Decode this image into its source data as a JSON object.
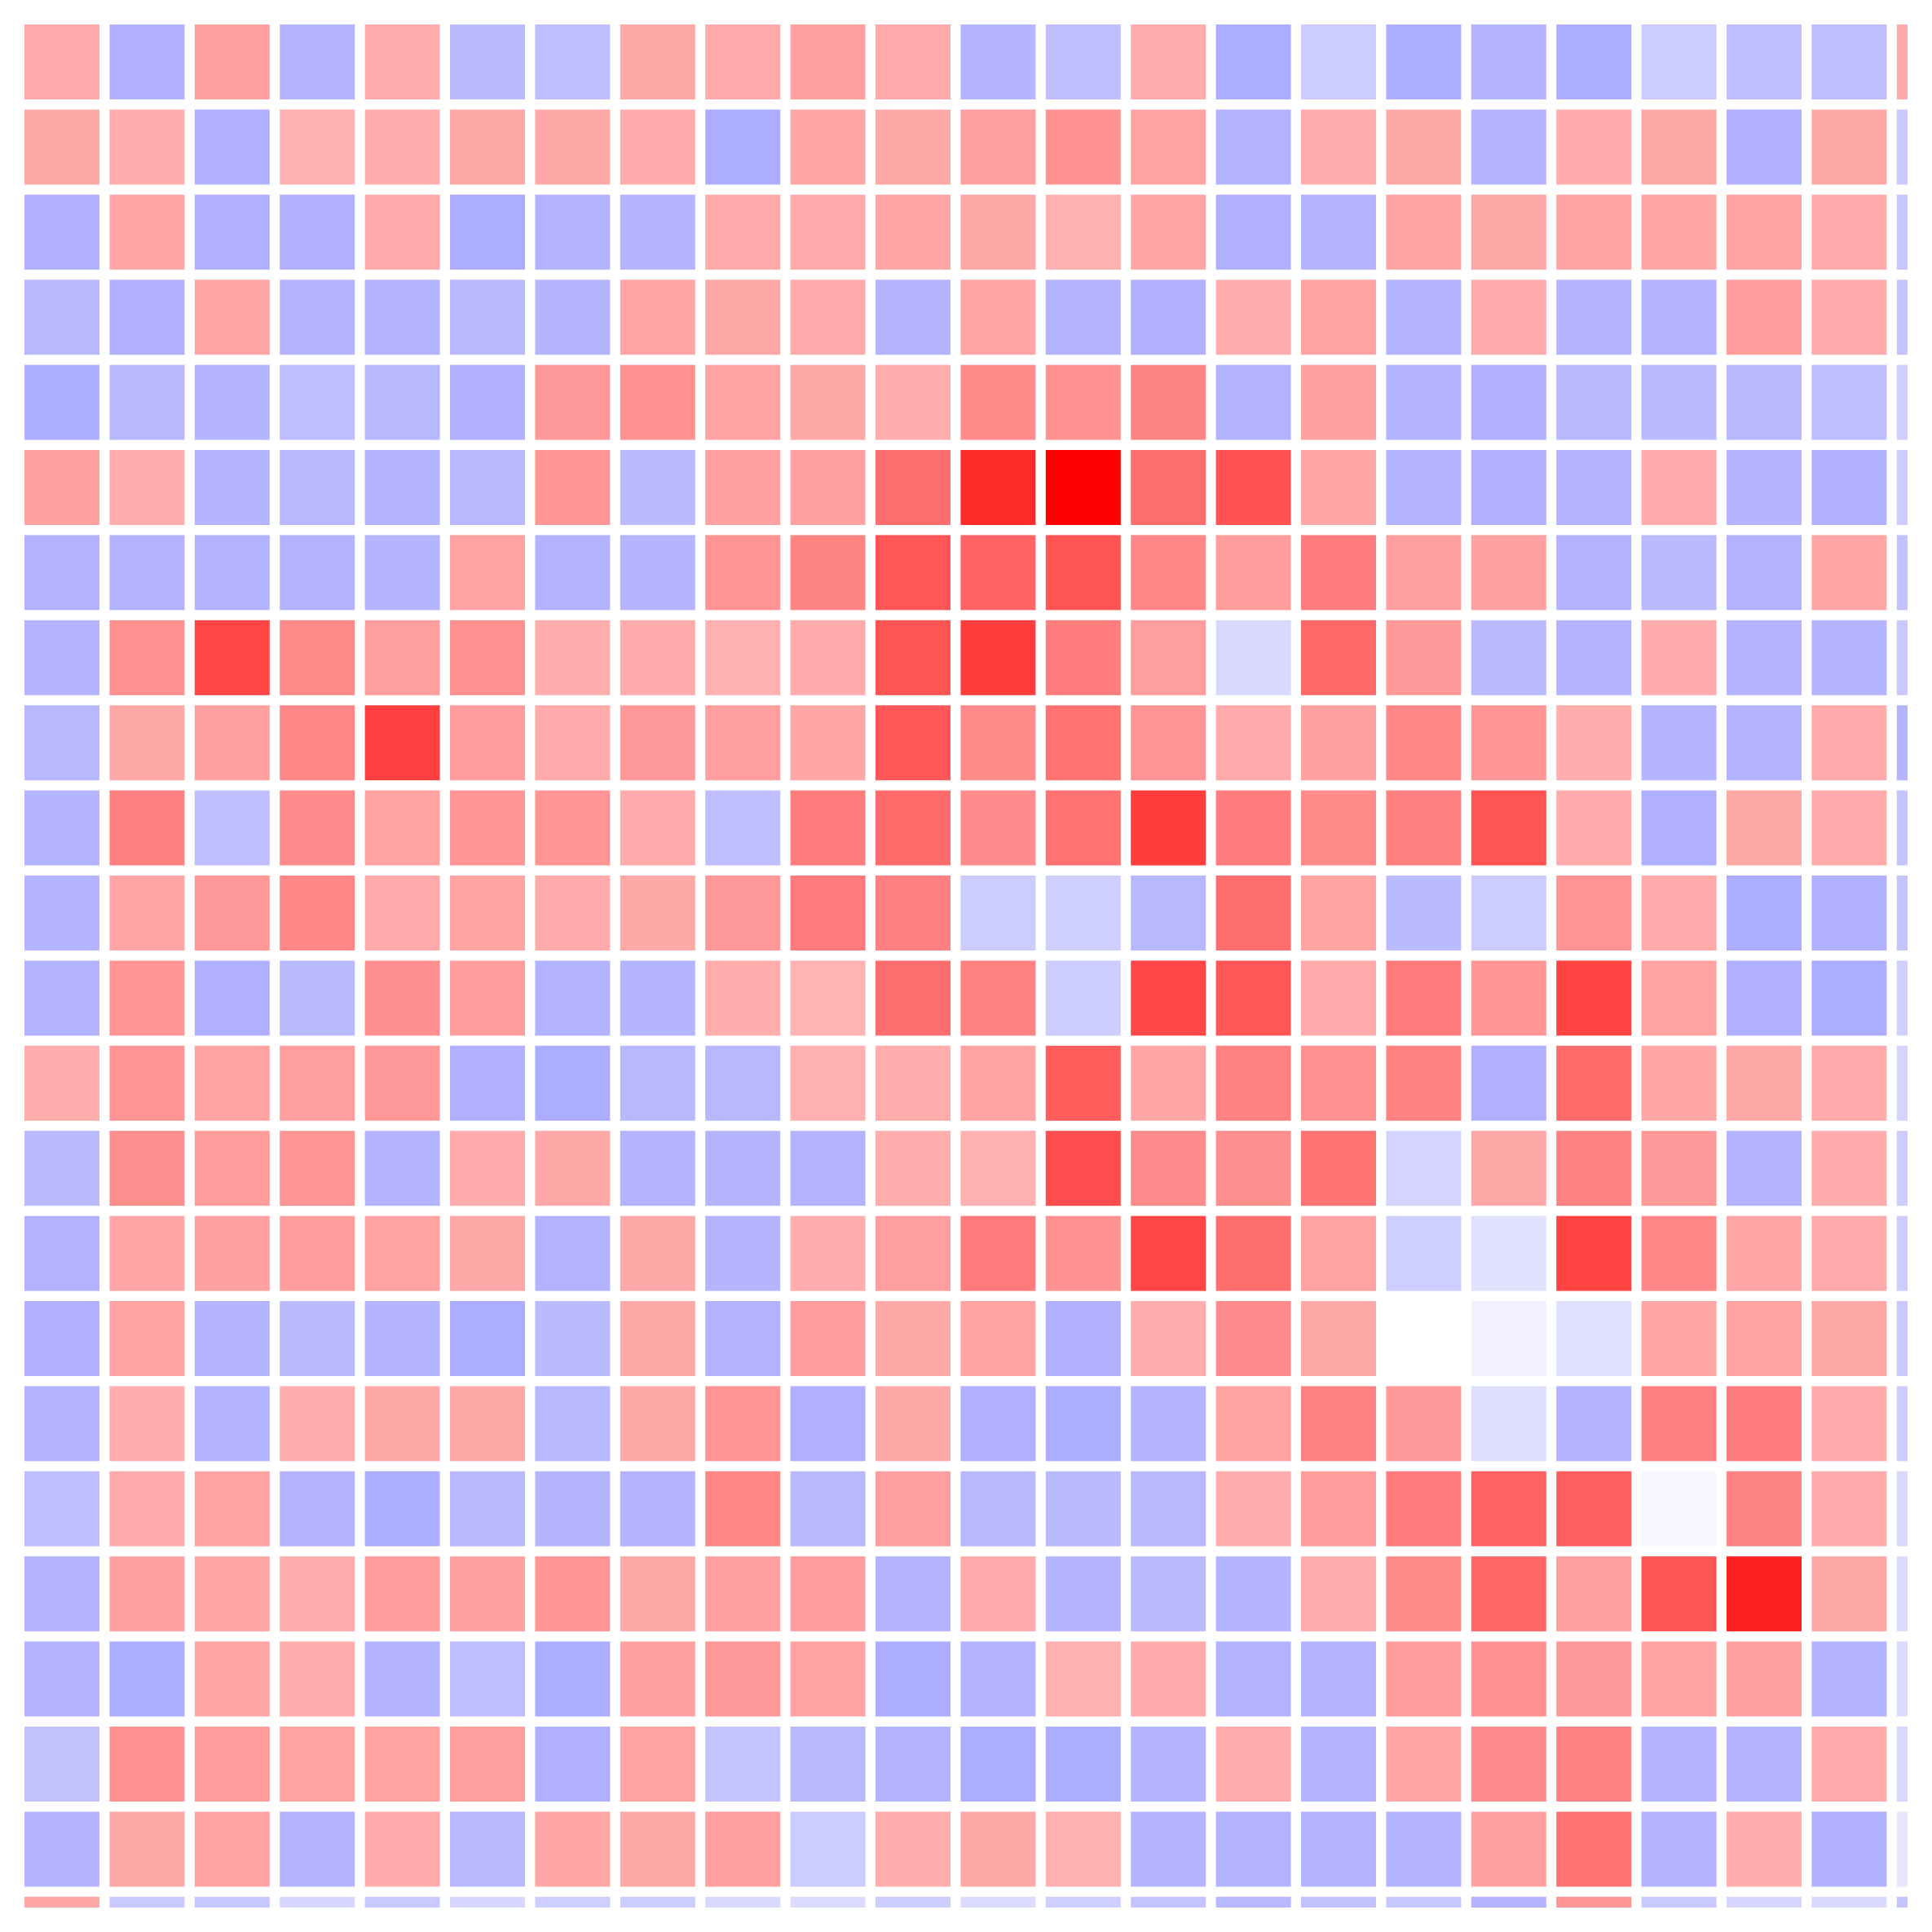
{
  "chart_data": {
    "type": "heatmap",
    "rows": 23,
    "cols": 23,
    "grid": false,
    "legend": "none",
    "colors": {
      "low": "#0000ff",
      "mid": "#ffffff",
      "high": "#ff0000"
    },
    "value_range": [
      -1,
      1
    ],
    "values": [
      [
        0.33,
        -0.31,
        0.37,
        -0.3,
        0.32,
        -0.27,
        -0.25,
        0.34,
        0.33,
        0.37,
        0.33,
        -0.29,
        -0.25,
        0.32,
        -0.32,
        -0.2,
        -0.32,
        -0.3,
        -0.32,
        -0.2,
        -0.25,
        -0.26,
        0.33
      ],
      [
        0.34,
        0.32,
        -0.31,
        0.31,
        0.32,
        0.34,
        0.34,
        0.33,
        -0.32,
        0.35,
        0.34,
        0.38,
        0.43,
        0.36,
        -0.3,
        0.32,
        0.34,
        -0.3,
        0.33,
        0.34,
        -0.31,
        0.34,
        -0.21
      ],
      [
        -0.31,
        0.35,
        -0.31,
        -0.31,
        0.33,
        -0.32,
        -0.3,
        -0.29,
        0.33,
        0.33,
        0.35,
        0.34,
        0.31,
        0.35,
        -0.31,
        -0.3,
        0.36,
        0.34,
        0.36,
        0.35,
        0.36,
        0.33,
        -0.22
      ],
      [
        -0.28,
        -0.31,
        0.35,
        -0.29,
        -0.3,
        -0.28,
        -0.29,
        0.35,
        0.34,
        0.33,
        -0.29,
        0.35,
        -0.3,
        -0.31,
        0.32,
        0.36,
        -0.3,
        0.33,
        -0.29,
        -0.3,
        0.39,
        0.33,
        -0.23
      ],
      [
        -0.32,
        -0.28,
        -0.29,
        -0.26,
        -0.28,
        -0.31,
        0.4,
        0.43,
        0.36,
        0.34,
        0.32,
        0.46,
        0.43,
        0.48,
        -0.3,
        0.37,
        -0.3,
        -0.31,
        -0.28,
        -0.27,
        -0.28,
        -0.26,
        -0.19
      ],
      [
        0.37,
        0.32,
        -0.29,
        -0.28,
        -0.3,
        -0.28,
        0.41,
        -0.27,
        0.37,
        0.37,
        0.57,
        0.83,
        1.0,
        0.57,
        0.68,
        0.35,
        -0.3,
        -0.31,
        -0.3,
        0.33,
        -0.29,
        -0.31,
        -0.2
      ],
      [
        -0.3,
        -0.3,
        -0.3,
        -0.3,
        -0.29,
        0.36,
        -0.3,
        -0.29,
        0.42,
        0.48,
        0.66,
        0.61,
        0.67,
        0.47,
        0.39,
        0.51,
        0.38,
        0.37,
        -0.3,
        -0.27,
        -0.3,
        0.35,
        -0.24
      ],
      [
        -0.3,
        0.43,
        0.73,
        0.46,
        0.38,
        0.43,
        0.32,
        0.33,
        0.31,
        0.33,
        0.67,
        0.76,
        0.51,
        0.38,
        -0.15,
        0.59,
        0.4,
        -0.27,
        -0.3,
        0.33,
        -0.3,
        -0.29,
        -0.21
      ],
      [
        -0.28,
        0.34,
        0.37,
        0.47,
        0.75,
        0.39,
        0.33,
        0.4,
        0.38,
        0.35,
        0.66,
        0.46,
        0.55,
        0.42,
        0.33,
        0.37,
        0.47,
        0.41,
        0.32,
        -0.29,
        -0.3,
        0.33,
        -0.29
      ],
      [
        -0.29,
        0.5,
        -0.25,
        0.45,
        0.36,
        0.41,
        0.42,
        0.33,
        -0.25,
        0.51,
        0.58,
        0.45,
        0.55,
        0.76,
        0.51,
        0.46,
        0.5,
        0.67,
        0.33,
        -0.31,
        0.34,
        0.33,
        -0.23
      ],
      [
        -0.3,
        0.35,
        0.4,
        0.47,
        0.33,
        0.36,
        0.33,
        0.34,
        0.4,
        0.52,
        0.5,
        -0.2,
        -0.19,
        -0.28,
        0.57,
        0.36,
        -0.27,
        -0.2,
        0.42,
        0.33,
        -0.32,
        -0.31,
        -0.23
      ],
      [
        -0.3,
        0.42,
        -0.31,
        -0.27,
        0.44,
        0.39,
        -0.3,
        -0.29,
        0.32,
        0.3,
        0.57,
        0.49,
        -0.2,
        0.72,
        0.66,
        0.33,
        0.52,
        0.41,
        0.74,
        0.36,
        -0.31,
        -0.32,
        -0.18
      ],
      [
        0.32,
        0.42,
        0.36,
        0.38,
        0.4,
        -0.31,
        -0.32,
        -0.28,
        -0.28,
        0.31,
        0.32,
        0.36,
        0.64,
        0.35,
        0.49,
        0.43,
        0.49,
        -0.31,
        0.58,
        0.35,
        0.34,
        0.33,
        -0.17
      ],
      [
        -0.27,
        0.44,
        0.39,
        0.41,
        -0.3,
        0.33,
        0.34,
        -0.3,
        -0.29,
        -0.3,
        0.32,
        0.31,
        0.7,
        0.45,
        0.44,
        0.55,
        -0.17,
        0.34,
        0.49,
        0.4,
        -0.3,
        0.33,
        -0.2
      ],
      [
        -0.3,
        0.35,
        0.37,
        0.39,
        0.36,
        0.34,
        -0.3,
        0.34,
        -0.29,
        0.32,
        0.38,
        0.52,
        0.43,
        0.73,
        0.57,
        0.36,
        -0.19,
        -0.12,
        0.74,
        0.47,
        0.35,
        0.33,
        -0.2
      ],
      [
        -0.31,
        0.36,
        -0.29,
        -0.27,
        -0.29,
        -0.32,
        -0.27,
        0.34,
        -0.3,
        0.39,
        0.34,
        0.36,
        -0.31,
        0.32,
        0.45,
        0.34,
        0.0,
        -0.06,
        -0.12,
        0.35,
        0.36,
        0.34,
        -0.21
      ],
      [
        -0.3,
        0.32,
        -0.3,
        0.32,
        0.34,
        0.34,
        -0.28,
        0.34,
        0.42,
        -0.31,
        0.34,
        -0.31,
        -0.32,
        -0.3,
        0.36,
        0.49,
        0.4,
        -0.13,
        -0.3,
        0.5,
        0.51,
        0.33,
        -0.2
      ],
      [
        -0.26,
        0.33,
        0.36,
        -0.3,
        -0.32,
        -0.28,
        -0.29,
        -0.3,
        0.47,
        -0.28,
        0.38,
        -0.28,
        -0.27,
        -0.28,
        0.32,
        0.39,
        0.52,
        0.61,
        0.63,
        -0.03,
        0.48,
        0.33,
        -0.15
      ],
      [
        -0.3,
        0.37,
        0.35,
        0.32,
        0.39,
        0.37,
        0.41,
        0.34,
        0.37,
        0.39,
        -0.3,
        0.33,
        -0.29,
        -0.27,
        -0.29,
        0.32,
        0.46,
        0.6,
        0.38,
        0.67,
        0.87,
        0.34,
        -0.14
      ],
      [
        -0.3,
        -0.32,
        0.35,
        0.32,
        -0.3,
        -0.26,
        -0.32,
        0.37,
        0.4,
        0.36,
        -0.32,
        -0.3,
        0.31,
        0.33,
        -0.3,
        -0.3,
        0.39,
        0.43,
        0.4,
        0.36,
        0.37,
        -0.3,
        -0.14
      ],
      [
        -0.24,
        0.43,
        0.39,
        0.36,
        0.36,
        0.38,
        -0.31,
        0.36,
        -0.23,
        -0.28,
        -0.3,
        -0.32,
        -0.32,
        -0.3,
        0.32,
        -0.29,
        0.35,
        0.45,
        0.49,
        -0.3,
        -0.3,
        0.33,
        -0.15
      ],
      [
        -0.29,
        0.34,
        0.36,
        -0.3,
        0.33,
        -0.28,
        0.35,
        0.34,
        0.38,
        -0.2,
        0.32,
        0.34,
        0.31,
        -0.29,
        -0.3,
        -0.3,
        -0.29,
        0.37,
        0.55,
        -0.3,
        0.32,
        -0.31,
        -0.1
      ],
      [
        0.35,
        -0.21,
        -0.22,
        -0.16,
        -0.21,
        -0.16,
        -0.19,
        -0.2,
        -0.15,
        -0.14,
        -0.2,
        -0.14,
        -0.19,
        -0.23,
        -0.28,
        -0.24,
        -0.22,
        -0.3,
        0.42,
        -0.21,
        -0.16,
        -0.15,
        -0.23
      ]
    ]
  }
}
